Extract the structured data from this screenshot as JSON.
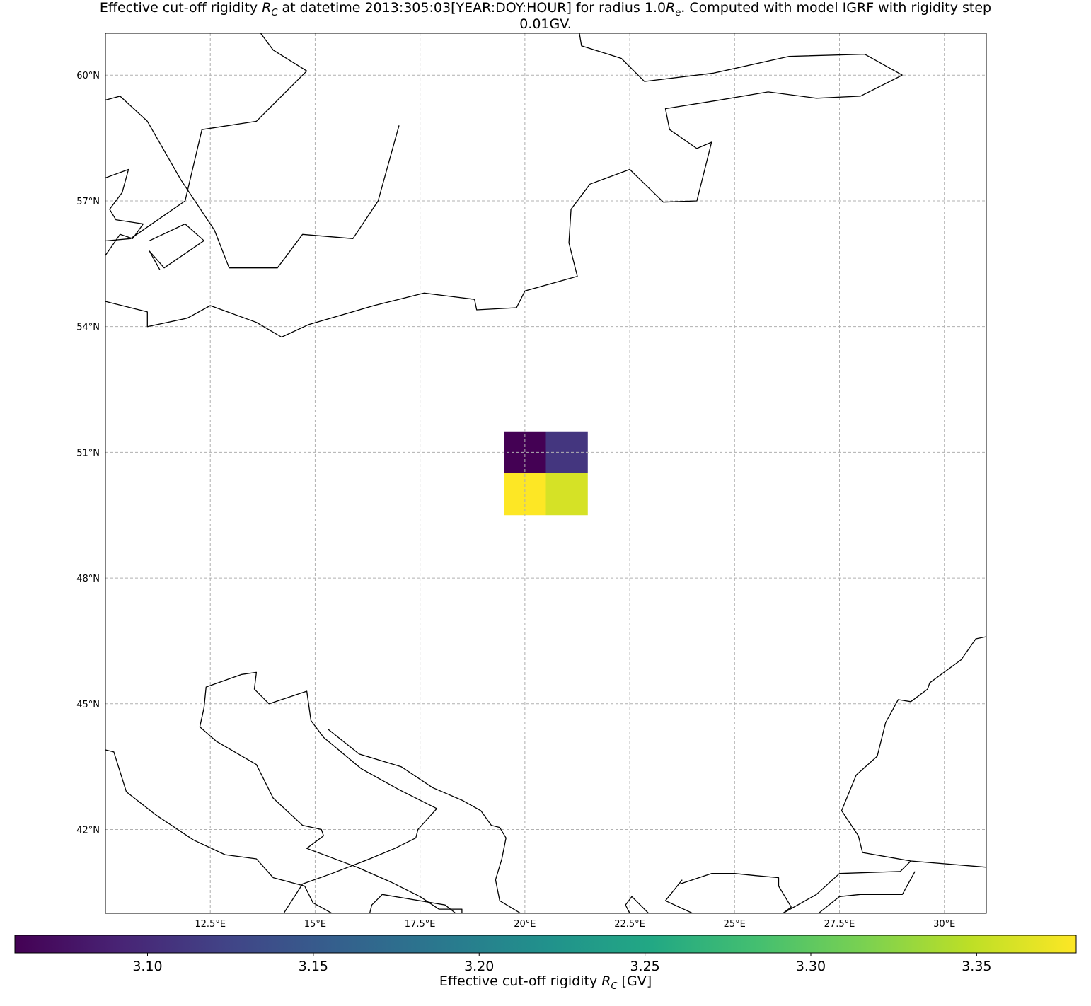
{
  "chart_data": {
    "type": "heatmap",
    "title": "Effective cut-off rigidity R_C at datetime 2013:305:03[YEAR:DOY:HOUR] for radius 1.0R_e. Computed with model IGRF with rigidity step 0.01GV.",
    "title_parts": {
      "line1_a": "Effective cut-off rigidity ",
      "rc_main": "R",
      "rc_sub": "C",
      "line1_b": " at datetime 2013:305:03[YEAR:DOY:HOUR] for radius 1.0",
      "re_main": "R",
      "re_sub": "e",
      "line1_c": ". Computed with model IGRF with rigidity step",
      "line2": "0.01GV."
    },
    "map": {
      "projection": "PlateCarree",
      "lon_range": [
        10,
        31
      ],
      "lat_range": [
        40,
        61
      ],
      "gridlines": true,
      "coastlines": true
    },
    "x_tick_labels": [
      "12.5°E",
      "15°E",
      "17.5°E",
      "20°E",
      "22.5°E",
      "25°E",
      "27.5°E",
      "30°E"
    ],
    "x_ticks": [
      12.5,
      15,
      17.5,
      20,
      22.5,
      25,
      27.5,
      30
    ],
    "y_tick_labels": [
      "42°N",
      "45°N",
      "48°N",
      "51°N",
      "54°N",
      "57°N",
      "60°N"
    ],
    "y_ticks": [
      42,
      45,
      48,
      51,
      54,
      57,
      60
    ],
    "cells": [
      {
        "lon": [
          19.5,
          20.5
        ],
        "lat": [
          50.5,
          51.5
        ],
        "value": 3.06
      },
      {
        "lon": [
          20.5,
          21.5
        ],
        "lat": [
          50.5,
          51.5
        ],
        "value": 3.11
      },
      {
        "lon": [
          19.5,
          20.5
        ],
        "lat": [
          49.5,
          50.5
        ],
        "value": 3.38
      },
      {
        "lon": [
          20.5,
          21.5
        ],
        "lat": [
          49.5,
          50.5
        ],
        "value": 3.36
      }
    ],
    "colorbar": {
      "colormap": "viridis",
      "orientation": "horizontal",
      "range": [
        3.06,
        3.38
      ],
      "ticks": [
        3.1,
        3.15,
        3.2,
        3.25,
        3.3,
        3.35
      ],
      "tick_labels": [
        "3.10",
        "3.15",
        "3.20",
        "3.25",
        "3.30",
        "3.35"
      ],
      "label_parts": {
        "a": "Effective cut-off rigidity ",
        "main": "R",
        "sub": "C",
        "b": " [GV]"
      }
    },
    "coastlines": [
      [
        [
          13.7,
          61.0
        ],
        [
          14.0,
          60.6
        ],
        [
          14.8,
          60.1
        ],
        [
          13.6,
          58.9
        ],
        [
          12.3,
          58.7
        ],
        [
          11.9,
          57.0
        ],
        [
          10.6,
          56.1
        ],
        [
          9.5,
          56.0
        ]
      ],
      [
        [
          9.6,
          59.3
        ],
        [
          10.35,
          59.5
        ],
        [
          11.0,
          58.9
        ],
        [
          11.8,
          57.5
        ],
        [
          12.6,
          56.3
        ],
        [
          12.95,
          55.4
        ],
        [
          14.1,
          55.4
        ],
        [
          14.7,
          56.2
        ],
        [
          15.9,
          56.1
        ],
        [
          16.5,
          57.0
        ],
        [
          17.0,
          58.8
        ]
      ],
      [
        [
          21.3,
          61.0
        ],
        [
          21.35,
          60.7
        ],
        [
          22.3,
          60.4
        ],
        [
          22.85,
          59.85
        ],
        [
          24.5,
          60.05
        ],
        [
          26.3,
          60.45
        ],
        [
          28.1,
          60.5
        ],
        [
          29.0,
          60.0
        ]
      ],
      [
        [
          29.0,
          60.0
        ],
        [
          28.0,
          59.5
        ],
        [
          26.95,
          59.45
        ],
        [
          25.8,
          59.6
        ],
        [
          24.6,
          59.4
        ],
        [
          23.35,
          59.2
        ],
        [
          23.45,
          58.7
        ],
        [
          24.1,
          58.25
        ],
        [
          24.45,
          58.4
        ],
        [
          24.3,
          57.8
        ],
        [
          24.1,
          57.0
        ],
        [
          23.3,
          56.97
        ],
        [
          22.5,
          57.75
        ],
        [
          21.55,
          57.4
        ],
        [
          21.1,
          56.8
        ],
        [
          21.05,
          56.0
        ],
        [
          21.25,
          55.2
        ],
        [
          20.0,
          54.85
        ],
        [
          19.8,
          54.45
        ],
        [
          18.85,
          54.4
        ],
        [
          18.8,
          54.65
        ],
        [
          17.6,
          54.8
        ],
        [
          16.4,
          54.5
        ],
        [
          14.85,
          54.05
        ],
        [
          14.2,
          53.75
        ],
        [
          13.6,
          54.1
        ],
        [
          12.5,
          54.5
        ],
        [
          11.95,
          54.2
        ],
        [
          11.0,
          54.0
        ],
        [
          11.0,
          54.35
        ],
        [
          10.0,
          54.6
        ]
      ],
      [
        [
          11.05,
          56.05
        ],
        [
          11.9,
          56.45
        ],
        [
          12.35,
          56.05
        ],
        [
          11.4,
          55.4
        ],
        [
          11.05,
          55.8
        ],
        [
          11.3,
          55.35
        ]
      ],
      [
        [
          10.0,
          55.7
        ],
        [
          10.35,
          56.2
        ],
        [
          10.65,
          56.1
        ],
        [
          10.9,
          56.45
        ],
        [
          10.25,
          56.55
        ],
        [
          10.1,
          56.8
        ],
        [
          10.4,
          57.2
        ],
        [
          10.55,
          57.75
        ],
        [
          10.0,
          57.55
        ]
      ],
      [
        [
          10.0,
          43.9
        ],
        [
          10.2,
          43.85
        ],
        [
          10.5,
          42.9
        ],
        [
          11.2,
          42.35
        ],
        [
          12.1,
          41.75
        ],
        [
          12.85,
          41.4
        ],
        [
          13.6,
          41.3
        ],
        [
          14.0,
          40.85
        ],
        [
          14.75,
          40.65
        ],
        [
          14.95,
          40.25
        ],
        [
          15.4,
          40.0
        ]
      ],
      [
        [
          14.25,
          40.0
        ],
        [
          14.7,
          40.7
        ],
        [
          15.4,
          40.95
        ],
        [
          16.3,
          41.3
        ],
        [
          16.9,
          41.55
        ],
        [
          17.4,
          41.8
        ],
        [
          17.45,
          42.0
        ],
        [
          17.9,
          42.5
        ],
        [
          17.0,
          42.95
        ],
        [
          16.1,
          43.45
        ],
        [
          15.2,
          44.2
        ],
        [
          14.9,
          44.6
        ],
        [
          14.8,
          45.3
        ],
        [
          13.9,
          45.0
        ],
        [
          13.55,
          45.35
        ],
        [
          13.6,
          45.75
        ],
        [
          13.25,
          45.7
        ],
        [
          12.4,
          45.4
        ],
        [
          12.35,
          44.9
        ],
        [
          12.25,
          44.45
        ],
        [
          12.65,
          44.1
        ],
        [
          13.6,
          43.55
        ],
        [
          14.0,
          42.75
        ],
        [
          14.7,
          42.1
        ],
        [
          15.15,
          42.0
        ],
        [
          15.2,
          41.85
        ],
        [
          14.8,
          41.55
        ],
        [
          16.0,
          41.1
        ],
        [
          16.8,
          40.75
        ],
        [
          17.5,
          40.4
        ],
        [
          17.95,
          40.1
        ],
        [
          18.5,
          40.1
        ],
        [
          18.5,
          40.0
        ]
      ],
      [
        [
          18.35,
          40.0
        ],
        [
          18.1,
          40.2
        ],
        [
          16.6,
          40.45
        ],
        [
          16.35,
          40.2
        ],
        [
          16.3,
          40.0
        ]
      ],
      [
        [
          19.9,
          40.0
        ],
        [
          19.4,
          40.3
        ],
        [
          19.3,
          40.8
        ],
        [
          19.45,
          41.3
        ],
        [
          19.55,
          41.8
        ],
        [
          19.4,
          42.05
        ],
        [
          19.2,
          42.1
        ],
        [
          18.95,
          42.45
        ],
        [
          18.5,
          42.7
        ],
        [
          17.8,
          43.0
        ],
        [
          17.05,
          43.5
        ],
        [
          16.05,
          43.8
        ],
        [
          15.3,
          44.4
        ]
      ],
      [
        [
          22.95,
          40.0
        ],
        [
          22.55,
          40.4
        ],
        [
          22.4,
          40.2
        ],
        [
          22.5,
          40.0
        ]
      ],
      [
        [
          26.15,
          40.0
        ],
        [
          26.95,
          40.45
        ],
        [
          27.5,
          40.95
        ],
        [
          28.95,
          41.0
        ],
        [
          29.2,
          41.25
        ],
        [
          28.05,
          41.45
        ],
        [
          27.95,
          41.85
        ],
        [
          27.55,
          42.45
        ],
        [
          27.9,
          43.3
        ],
        [
          28.4,
          43.75
        ],
        [
          28.6,
          44.55
        ],
        [
          28.9,
          45.1
        ],
        [
          29.2,
          45.05
        ],
        [
          29.6,
          45.35
        ],
        [
          29.65,
          45.5
        ],
        [
          30.4,
          46.05
        ],
        [
          30.75,
          46.55
        ],
        [
          31.0,
          46.6
        ]
      ],
      [
        [
          23.7,
          40.7
        ],
        [
          24.15,
          40.85
        ],
        [
          24.45,
          40.95
        ],
        [
          25.0,
          40.95
        ],
        [
          25.5,
          40.9
        ],
        [
          26.05,
          40.85
        ],
        [
          26.05,
          40.65
        ],
        [
          26.35,
          40.15
        ],
        [
          26.15,
          40.0
        ]
      ],
      [
        [
          31.0,
          41.1
        ],
        [
          29.2,
          41.25
        ]
      ],
      [
        [
          27.0,
          40.0
        ],
        [
          27.5,
          40.4
        ],
        [
          28.0,
          40.45
        ],
        [
          29.0,
          40.45
        ],
        [
          29.3,
          41.0
        ]
      ],
      [
        [
          24.0,
          40.0
        ],
        [
          23.35,
          40.3
        ],
        [
          23.75,
          40.8
        ]
      ]
    ]
  }
}
